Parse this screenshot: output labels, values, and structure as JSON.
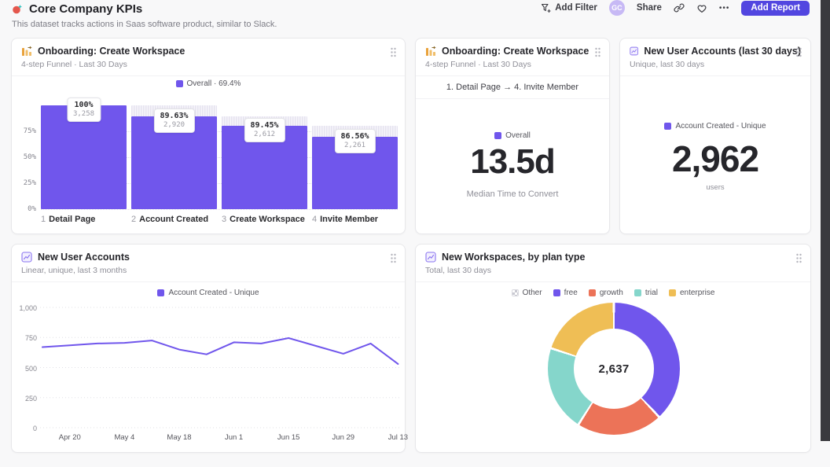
{
  "header": {
    "title": "Core Company KPIs",
    "subtitle": "This dataset tracks actions in Saas software product, similar to Slack."
  },
  "toolbar": {
    "add_filter_label": "Add Filter",
    "avatar_initials": "GC",
    "share_label": "Share",
    "more_label": "•••",
    "add_report_label": "Add Report"
  },
  "colors": {
    "accent_purple": "#7056EC",
    "button_purple": "#5246E0",
    "growth_coral": "#EC7358",
    "trial_teal": "#85D6CB",
    "enterprise_amber": "#EFBE55",
    "other_gray": "#C9C9D1",
    "dark_edge": "#3A3A3E"
  },
  "cards": {
    "funnel": {
      "title": "Onboarding: Create Workspace",
      "subtitle": "4-step Funnel · Last 30 Days",
      "legend": "Overall · 69.4%"
    },
    "time_to_convert": {
      "title": "Onboarding: Create Workspace",
      "subtitle": "4-step Funnel · Last 30 Days",
      "range_label": "1. Detail Page → 4. Invite Member",
      "legend": "Overall",
      "value": "13.5d",
      "value_caption": "Median Time to Convert"
    },
    "new_accounts_30d": {
      "title": "New User Accounts (last 30 days)",
      "subtitle": "Unique, last 30 days",
      "legend": "Account Created - Unique",
      "value": "2,962",
      "value_caption": "users"
    },
    "new_accounts_trend": {
      "title": "New User Accounts",
      "subtitle": "Linear, unique, last 3 months",
      "legend": "Account Created - Unique"
    },
    "workspaces_by_plan": {
      "title": "New Workspaces, by plan type",
      "subtitle": "Total, last 30 days",
      "center_value": "2,637"
    }
  },
  "chart_data": [
    {
      "type": "bar",
      "title": "Onboarding: Create Workspace",
      "subtitle": "4-step Funnel · Last 30 Days",
      "legend": "Overall · 69.4%",
      "color": "#7056EC",
      "y_ticks": [
        "75%",
        "50%",
        "25%",
        "0%"
      ],
      "ylim": [
        0,
        100
      ],
      "steps": [
        {
          "num": "1",
          "label": "Detail Page",
          "pct": "100%",
          "count": "3,258",
          "height_pct": 100
        },
        {
          "num": "2",
          "label": "Account Created",
          "pct": "89.63%",
          "count": "2,920",
          "height_pct": 89.63
        },
        {
          "num": "3",
          "label": "Create Workspace",
          "pct": "89.45%",
          "count": "2,612",
          "height_pct": 80.17
        },
        {
          "num": "4",
          "label": "Invite Member",
          "pct": "86.56%",
          "count": "2,261",
          "height_pct": 69.4
        }
      ]
    },
    {
      "type": "line",
      "color": "#7056EC",
      "series": [
        {
          "name": "Account Created - Unique",
          "values": [
            670,
            685,
            700,
            705,
            725,
            650,
            610,
            710,
            700,
            745,
            680,
            615,
            700,
            530
          ]
        }
      ],
      "x_labels": [
        "Apr 20",
        "May 4",
        "May 18",
        "Jun 1",
        "Jun 15",
        "Jun 29",
        "Jul 13"
      ],
      "y_ticks": [
        "1,000",
        "750",
        "500",
        "250",
        "0"
      ],
      "ylim": [
        0,
        1000
      ],
      "grid": "dotted horizontal"
    },
    {
      "type": "pie",
      "center_total": "2,637",
      "legend_position": "top",
      "slices": [
        {
          "label": "Other",
          "value": 0,
          "color": "#C9C9D1",
          "checker": true
        },
        {
          "label": "free",
          "value": 1002,
          "color": "#7056EC"
        },
        {
          "label": "growth",
          "value": 554,
          "color": "#EC7358"
        },
        {
          "label": "trial",
          "value": 554,
          "color": "#85D6CB"
        },
        {
          "label": "enterprise",
          "value": 527,
          "color": "#EFBE55"
        }
      ]
    }
  ]
}
